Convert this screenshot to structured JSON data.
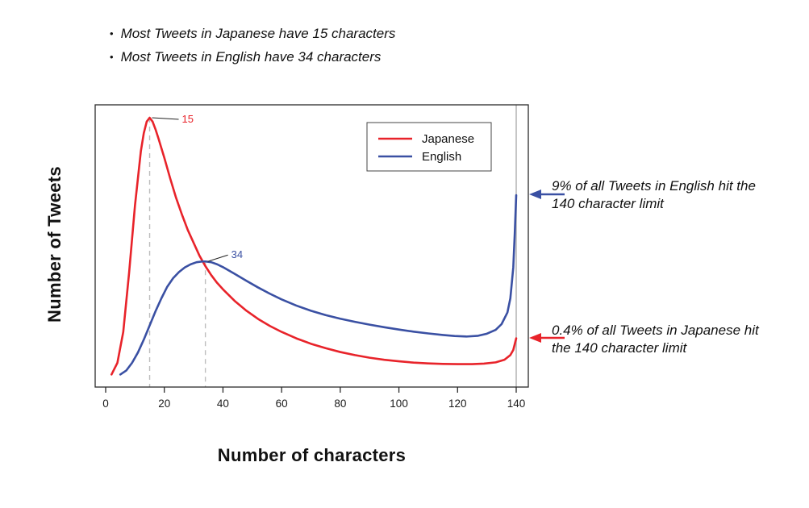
{
  "page": {
    "background": "#ffffff"
  },
  "notes": {
    "bullet_glyph": "•",
    "items": [
      "Most Tweets in Japanese have 15 characters",
      "Most Tweets in English have 34 characters"
    ]
  },
  "chart_data": {
    "type": "line",
    "title": "",
    "xlabel": "Number of characters",
    "ylabel": "Number of Tweets",
    "xlim": [
      0,
      145
    ],
    "ylim": [
      0,
      1
    ],
    "grid": false,
    "legend_position": "top-right-inside",
    "x_ticks": [
      0,
      20,
      40,
      60,
      80,
      100,
      120,
      140
    ],
    "limit_line_x": 140,
    "series": [
      {
        "name": "Japanese",
        "color": "#e8232a",
        "points": [
          [
            2,
            0.005
          ],
          [
            4,
            0.05
          ],
          [
            6,
            0.17
          ],
          [
            8,
            0.4
          ],
          [
            10,
            0.66
          ],
          [
            12,
            0.87
          ],
          [
            13,
            0.94
          ],
          [
            14,
            0.985
          ],
          [
            15,
            1.0
          ],
          [
            16,
            0.985
          ],
          [
            17,
            0.955
          ],
          [
            18,
            0.92
          ],
          [
            20,
            0.845
          ],
          [
            22,
            0.765
          ],
          [
            24,
            0.69
          ],
          [
            26,
            0.625
          ],
          [
            28,
            0.565
          ],
          [
            30,
            0.515
          ],
          [
            32,
            0.465
          ],
          [
            34,
            0.425
          ],
          [
            36,
            0.39
          ],
          [
            38,
            0.36
          ],
          [
            40,
            0.335
          ],
          [
            44,
            0.29
          ],
          [
            48,
            0.252
          ],
          [
            52,
            0.22
          ],
          [
            56,
            0.193
          ],
          [
            60,
            0.17
          ],
          [
            65,
            0.145
          ],
          [
            70,
            0.124
          ],
          [
            75,
            0.107
          ],
          [
            80,
            0.092
          ],
          [
            85,
            0.08
          ],
          [
            90,
            0.07
          ],
          [
            95,
            0.062
          ],
          [
            100,
            0.056
          ],
          [
            105,
            0.051
          ],
          [
            110,
            0.048
          ],
          [
            115,
            0.046
          ],
          [
            120,
            0.045
          ],
          [
            125,
            0.045
          ],
          [
            129,
            0.047
          ],
          [
            133,
            0.052
          ],
          [
            136,
            0.062
          ],
          [
            138,
            0.08
          ],
          [
            139,
            0.1
          ],
          [
            140,
            0.145
          ]
        ]
      },
      {
        "name": "English",
        "color": "#3a50a3",
        "points": [
          [
            5,
            0.005
          ],
          [
            7,
            0.02
          ],
          [
            9,
            0.05
          ],
          [
            11,
            0.09
          ],
          [
            13,
            0.14
          ],
          [
            15,
            0.195
          ],
          [
            17,
            0.25
          ],
          [
            19,
            0.3
          ],
          [
            21,
            0.345
          ],
          [
            23,
            0.378
          ],
          [
            25,
            0.402
          ],
          [
            27,
            0.42
          ],
          [
            29,
            0.432
          ],
          [
            31,
            0.44
          ],
          [
            33,
            0.443
          ],
          [
            34,
            0.443
          ],
          [
            36,
            0.44
          ],
          [
            38,
            0.432
          ],
          [
            40,
            0.421
          ],
          [
            44,
            0.395
          ],
          [
            48,
            0.368
          ],
          [
            52,
            0.342
          ],
          [
            56,
            0.318
          ],
          [
            60,
            0.296
          ],
          [
            65,
            0.272
          ],
          [
            70,
            0.252
          ],
          [
            75,
            0.235
          ],
          [
            80,
            0.221
          ],
          [
            85,
            0.209
          ],
          [
            90,
            0.198
          ],
          [
            95,
            0.188
          ],
          [
            100,
            0.179
          ],
          [
            105,
            0.171
          ],
          [
            110,
            0.164
          ],
          [
            115,
            0.158
          ],
          [
            119,
            0.154
          ],
          [
            123,
            0.152
          ],
          [
            127,
            0.155
          ],
          [
            130,
            0.163
          ],
          [
            133,
            0.178
          ],
          [
            135,
            0.2
          ],
          [
            137,
            0.245
          ],
          [
            138,
            0.3
          ],
          [
            139,
            0.42
          ],
          [
            139.5,
            0.55
          ],
          [
            140,
            0.7
          ]
        ]
      }
    ],
    "peak_markers": [
      {
        "series": "Japanese",
        "x": 15,
        "label": "15",
        "color": "#e8232a"
      },
      {
        "series": "English",
        "x": 34,
        "label": "34",
        "color": "#3a50a3"
      }
    ]
  },
  "annotations": [
    {
      "text": "9% of all Tweets in English hit the 140 character limit",
      "color": "#3a50a3"
    },
    {
      "text": "0.4% of all Tweets in Japanese hit the 140 character limit",
      "color": "#e8232a"
    }
  ]
}
